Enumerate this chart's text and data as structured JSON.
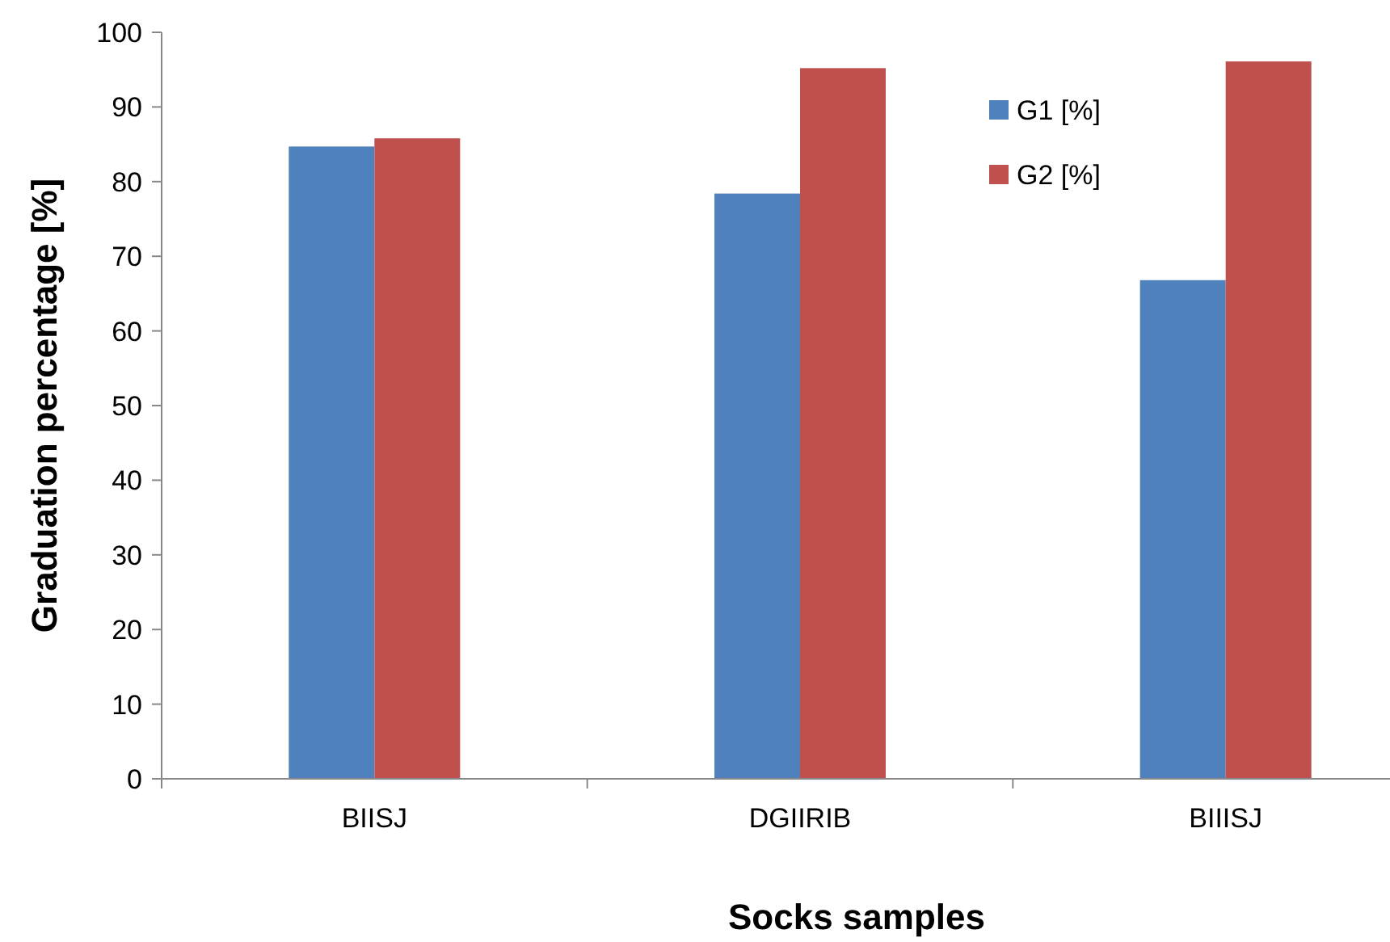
{
  "chart_data": {
    "type": "bar",
    "xlabel": "Socks samples",
    "ylabel": "Graduation percentage [%]",
    "categories": [
      "BIISJ",
      "DGIIRIB",
      "BIIISJ"
    ],
    "series": [
      {
        "name": "G1 [%]",
        "color": "#4f81bd",
        "values": [
          84.7,
          78.4,
          66.8
        ]
      },
      {
        "name": "G2 [%]",
        "color": "#c0504d",
        "values": [
          85.8,
          95.2,
          96.1
        ]
      }
    ],
    "ylim": [
      0,
      100
    ],
    "yticks": [
      0,
      10,
      20,
      30,
      40,
      50,
      60,
      70,
      80,
      90,
      100
    ],
    "legend": "top right"
  }
}
